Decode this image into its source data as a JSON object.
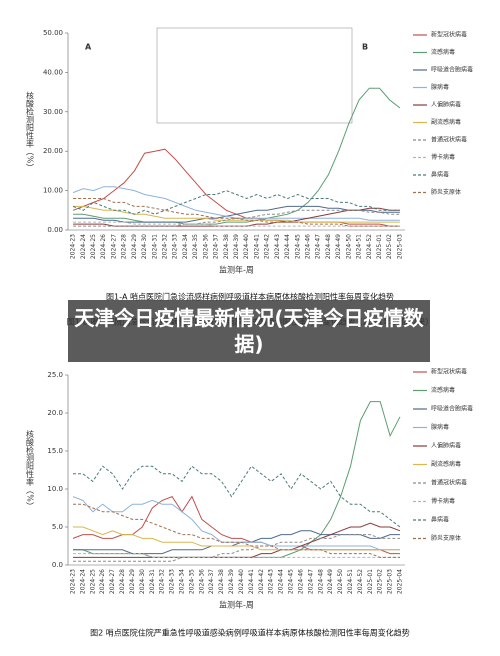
{
  "overlay_title": "天津今日疫情最新情况(天津今日疫情数据)",
  "chart_data": [
    {
      "type": "line",
      "panel_labels": [
        "A",
        "B"
      ],
      "captions": [
        "图1-A 哨点医院门急诊流感样病例呼吸道样本病原体核酸检测阳性率每周变化趋势",
        "图1-B 哨点医院门急诊流感样病例呼吸道样本病原体核酸检测阳性率每周变化趋势（2021年14周以来）"
      ],
      "ylabel": "核酸检测阳性率（%）",
      "xlabel": "监测年-周",
      "ylim": [
        0,
        50
      ],
      "yticks": [
        {
          "value": 0,
          "label": "0.00"
        },
        {
          "value": 10,
          "label": "10.00"
        },
        {
          "value": 20,
          "label": "20.00"
        },
        {
          "value": 30,
          "label": "30.00"
        },
        {
          "value": 40,
          "label": "40.00"
        },
        {
          "value": 50,
          "label": "50.00"
        }
      ],
      "categories": [
        "2024-23",
        "2024-24",
        "2024-25",
        "2024-26",
        "2024-27",
        "2024-28",
        "2024-29",
        "2024-30",
        "2024-31",
        "2024-32",
        "2024-33",
        "2024-34",
        "2024-35",
        "2024-36",
        "2024-37",
        "2024-38",
        "2024-39",
        "2024-40",
        "2024-41",
        "2024-42",
        "2024-43",
        "2024-44",
        "2024-45",
        "2024-46",
        "2024-47",
        "2024-48",
        "2024-49",
        "2024-50",
        "2024-51",
        "2024-52",
        "2025-01",
        "2025-02",
        "2025-03"
      ],
      "series": [
        {
          "name": "新型冠状病毒",
          "color": "#c0504d",
          "linestyle": "solid",
          "values": [
            5,
            6,
            7,
            8,
            10,
            12,
            15,
            19.5,
            20,
            20.5,
            18,
            15,
            12,
            9,
            7,
            5,
            4,
            3,
            3,
            2.5,
            2.5,
            2,
            2,
            2,
            2,
            2,
            2,
            1.5,
            1.5,
            1.5,
            1.5,
            1,
            1
          ]
        },
        {
          "name": "流感病毒",
          "color": "#5a9e72",
          "linestyle": "solid",
          "values": [
            4,
            4,
            3.5,
            3,
            3,
            3,
            2.5,
            2,
            2,
            2,
            2,
            1.5,
            1.5,
            1.5,
            1.5,
            2,
            2,
            2,
            2.5,
            3,
            3.5,
            4,
            5,
            7,
            10,
            14,
            20,
            27,
            33,
            36,
            36,
            33,
            31
          ]
        },
        {
          "name": "呼吸道合胞病毒",
          "color": "#4f6b8c",
          "linestyle": "solid",
          "values": [
            3,
            3,
            3,
            2.5,
            2.5,
            2,
            2,
            2,
            2,
            2,
            2,
            2,
            2.5,
            3,
            3,
            3.5,
            4,
            4.5,
            5,
            5,
            5.5,
            6,
            6,
            6,
            6,
            5.5,
            5.5,
            5,
            5,
            5,
            4.5,
            4.5,
            4.5
          ]
        },
        {
          "name": "腺病毒",
          "color": "#8fb3d9",
          "linestyle": "solid",
          "values": [
            9.5,
            10.5,
            10,
            11,
            11,
            10.5,
            10,
            9,
            8.5,
            8,
            7,
            6,
            5,
            4.5,
            4,
            3.5,
            3,
            3,
            3,
            3,
            3,
            3,
            3,
            3,
            3,
            3,
            3,
            3,
            3,
            2.5,
            2.5,
            2.5,
            2.5
          ]
        },
        {
          "name": "人偏肺病毒",
          "color": "#8b3a3a",
          "linestyle": "solid",
          "values": [
            1.5,
            1.5,
            1.5,
            1.5,
            1,
            1,
            1,
            1,
            1,
            1,
            1,
            1,
            1,
            1,
            1,
            1,
            1,
            1,
            1.5,
            1.5,
            2,
            2,
            2.5,
            3,
            3.5,
            4,
            4.5,
            5,
            5,
            5.5,
            5.5,
            5,
            5
          ]
        },
        {
          "name": "副流感病毒",
          "color": "#d9b650",
          "linestyle": "solid",
          "values": [
            6,
            6,
            5.5,
            5,
            5,
            4.5,
            4,
            4,
            3.5,
            3,
            3,
            3,
            3,
            3,
            2.5,
            2.5,
            2.5,
            2.5,
            2.5,
            2.5,
            2.5,
            2.5,
            2,
            2,
            2,
            2,
            2,
            2,
            2,
            2,
            2,
            2,
            2
          ]
        },
        {
          "name": "普通冠状病毒",
          "color": "#8c8c8c",
          "linestyle": "dashed",
          "values": [
            1,
            1,
            1,
            1,
            1,
            1,
            1,
            1,
            1,
            1,
            1,
            1.5,
            1.5,
            2,
            2,
            2.5,
            3,
            3,
            3.5,
            4,
            4,
            4.5,
            5,
            5,
            5,
            5,
            5,
            5,
            5,
            4.5,
            4.5,
            4,
            4
          ]
        },
        {
          "name": "博卡病毒",
          "color": "#b5b5b5",
          "linestyle": "dashed",
          "values": [
            2,
            2,
            2,
            2,
            2,
            2,
            1.5,
            1.5,
            1.5,
            1.5,
            1.5,
            1.5,
            1.5,
            1.5,
            1,
            1,
            1,
            1,
            1,
            1,
            1,
            1,
            1,
            1,
            1,
            1,
            1,
            1,
            1,
            1,
            1,
            1,
            1
          ]
        },
        {
          "name": "鼻病毒",
          "color": "#4a7a7a",
          "linestyle": "dashed",
          "values": [
            6,
            5,
            7,
            6,
            5,
            5,
            4,
            5,
            4,
            5,
            6,
            7,
            8,
            9,
            9,
            10,
            9,
            8,
            9,
            8,
            9,
            8,
            9,
            8,
            8,
            8,
            7,
            7,
            6,
            6,
            5,
            5,
            5
          ]
        },
        {
          "name": "肺炎支原体",
          "color": "#a07050",
          "linestyle": "dashed",
          "values": [
            8,
            8,
            8,
            8,
            7,
            7,
            6,
            6,
            5.5,
            5,
            4.5,
            4,
            4,
            3.5,
            3,
            3,
            3,
            2.5,
            2.5,
            2,
            2,
            2,
            2,
            1.5,
            1.5,
            1.5,
            1.5,
            1,
            1,
            1,
            1,
            1,
            1
          ]
        }
      ]
    },
    {
      "type": "line",
      "captions": [
        "图2 哨点医院住院严重急性呼吸道感染病例呼吸道样本病原体核酸检测阳性率每周变化趋势"
      ],
      "ylabel": "核酸检测阳性率（%）",
      "xlabel": "监测年-周",
      "ylim": [
        0,
        25
      ],
      "yticks": [
        {
          "value": 0,
          "label": "0.0"
        },
        {
          "value": 5,
          "label": "5.0"
        },
        {
          "value": 10,
          "label": "10.0"
        },
        {
          "value": 15,
          "label": "15.0"
        },
        {
          "value": 20,
          "label": "20.0"
        },
        {
          "value": 25,
          "label": "25.0"
        }
      ],
      "categories": [
        "2024-23",
        "2024-24",
        "2024-25",
        "2024-26",
        "2024-27",
        "2024-28",
        "2024-29",
        "2024-30",
        "2024-31",
        "2024-32",
        "2024-33",
        "2024-34",
        "2024-35",
        "2024-36",
        "2024-37",
        "2024-38",
        "2024-39",
        "2024-40",
        "2024-41",
        "2024-42",
        "2024-43",
        "2024-44",
        "2024-45",
        "2024-46",
        "2024-47",
        "2024-48",
        "2024-49",
        "2024-50",
        "2024-51",
        "2024-52",
        "2025-01",
        "2025-02",
        "2025-03",
        "2025-04"
      ],
      "series": [
        {
          "name": "新型冠状病毒",
          "color": "#c0504d",
          "linestyle": "solid",
          "values": [
            3.5,
            4,
            4,
            3.5,
            3.5,
            4,
            4,
            5,
            7.5,
            8.5,
            9,
            7,
            9,
            6,
            5,
            4,
            3.5,
            3.5,
            3,
            3,
            2.5,
            2.5,
            2.5,
            2.5,
            2,
            2,
            2,
            2,
            2,
            2,
            2,
            2,
            1.5,
            1.5
          ]
        },
        {
          "name": "流感病毒",
          "color": "#5a9e72",
          "linestyle": "solid",
          "values": [
            2,
            2,
            1.5,
            1.5,
            1.5,
            1.5,
            1.5,
            1.5,
            1,
            1,
            1,
            1,
            1,
            1,
            1,
            1,
            1,
            1,
            1,
            1,
            1,
            1,
            1.5,
            2,
            3,
            4,
            6,
            9,
            13,
            19,
            21.5,
            21.5,
            17,
            19.5
          ]
        },
        {
          "name": "呼吸道合胞病毒",
          "color": "#4f6b8c",
          "linestyle": "solid",
          "values": [
            2,
            2,
            2,
            2,
            2,
            2,
            1.5,
            1.5,
            1.5,
            1.5,
            2,
            2,
            2,
            2,
            2.5,
            2.5,
            2.5,
            3,
            3,
            3.5,
            3.5,
            4,
            4,
            4.5,
            4.5,
            4,
            4,
            4,
            4,
            4,
            3.5,
            3.5,
            4,
            4
          ]
        },
        {
          "name": "腺病毒",
          "color": "#8fb3d9",
          "linestyle": "solid",
          "values": [
            9,
            8.5,
            7,
            8,
            7,
            7,
            8,
            8,
            8.5,
            8,
            8,
            7,
            6,
            4.5,
            4,
            3,
            3,
            3,
            3,
            3,
            2.5,
            2.5,
            2.5,
            2.5,
            2.5,
            2.5,
            2.5,
            2.5,
            2.5,
            2.5,
            2.5,
            2,
            2,
            2
          ]
        },
        {
          "name": "人偏肺病毒",
          "color": "#8b3a3a",
          "linestyle": "solid",
          "values": [
            1,
            1,
            1,
            1,
            1,
            1,
            1,
            1,
            1,
            1,
            1,
            1,
            1,
            1,
            1,
            1,
            1,
            1,
            1,
            1.5,
            1.5,
            2,
            2,
            2.5,
            3,
            3.5,
            4,
            4.5,
            5,
            5,
            5.5,
            5,
            5,
            4.5
          ]
        },
        {
          "name": "副流感病毒",
          "color": "#d9b650",
          "linestyle": "solid",
          "values": [
            5,
            5,
            4.5,
            4,
            4.5,
            4,
            4,
            3.5,
            3.5,
            3,
            3,
            3,
            3,
            2.5,
            2.5,
            2.5,
            2.5,
            2.5,
            2.5,
            2,
            2,
            2,
            2,
            2,
            2,
            2,
            2,
            2,
            2,
            2,
            2,
            2,
            2,
            2
          ]
        },
        {
          "name": "普通冠状病毒",
          "color": "#8c8c8c",
          "linestyle": "dashed",
          "values": [
            0.5,
            0.5,
            0.5,
            0.5,
            0.5,
            0.5,
            0.5,
            0.5,
            0.5,
            0.5,
            0.5,
            1,
            1,
            1,
            1,
            1.5,
            1.5,
            2,
            2,
            2.5,
            2.5,
            3,
            3,
            3,
            3.5,
            3.5,
            3.5,
            4,
            4,
            4,
            4,
            3.5,
            3.5,
            3.5
          ]
        },
        {
          "name": "博卡病毒",
          "color": "#b5b5b5",
          "linestyle": "dashed",
          "values": [
            1.5,
            1.5,
            1.5,
            1.5,
            1.5,
            1.5,
            1.5,
            1.5,
            1,
            1,
            1,
            1,
            1,
            1,
            1,
            1,
            1,
            1,
            1,
            1,
            1,
            1,
            1,
            1,
            1,
            1,
            1,
            1,
            1,
            1,
            1,
            1,
            1,
            1
          ]
        },
        {
          "name": "鼻病毒",
          "color": "#4a7a7a",
          "linestyle": "dashed",
          "values": [
            12,
            12,
            11,
            13,
            12,
            10,
            12,
            13,
            13,
            12,
            12,
            11,
            13,
            12,
            12,
            11,
            9,
            11,
            13,
            12,
            11,
            12,
            10,
            12,
            11,
            10,
            11,
            9,
            8,
            8,
            7,
            7,
            6,
            5
          ]
        },
        {
          "name": "肺炎支原体",
          "color": "#a07050",
          "linestyle": "dashed",
          "values": [
            8,
            8,
            7.5,
            7,
            7,
            6.5,
            6,
            6,
            5.5,
            5,
            4.5,
            4,
            4,
            3.5,
            3.5,
            3,
            3,
            3,
            2.5,
            2.5,
            2.5,
            2,
            2,
            2,
            2,
            2,
            1.5,
            1.5,
            1.5,
            1.5,
            1.5,
            1,
            1,
            1
          ]
        }
      ]
    }
  ]
}
